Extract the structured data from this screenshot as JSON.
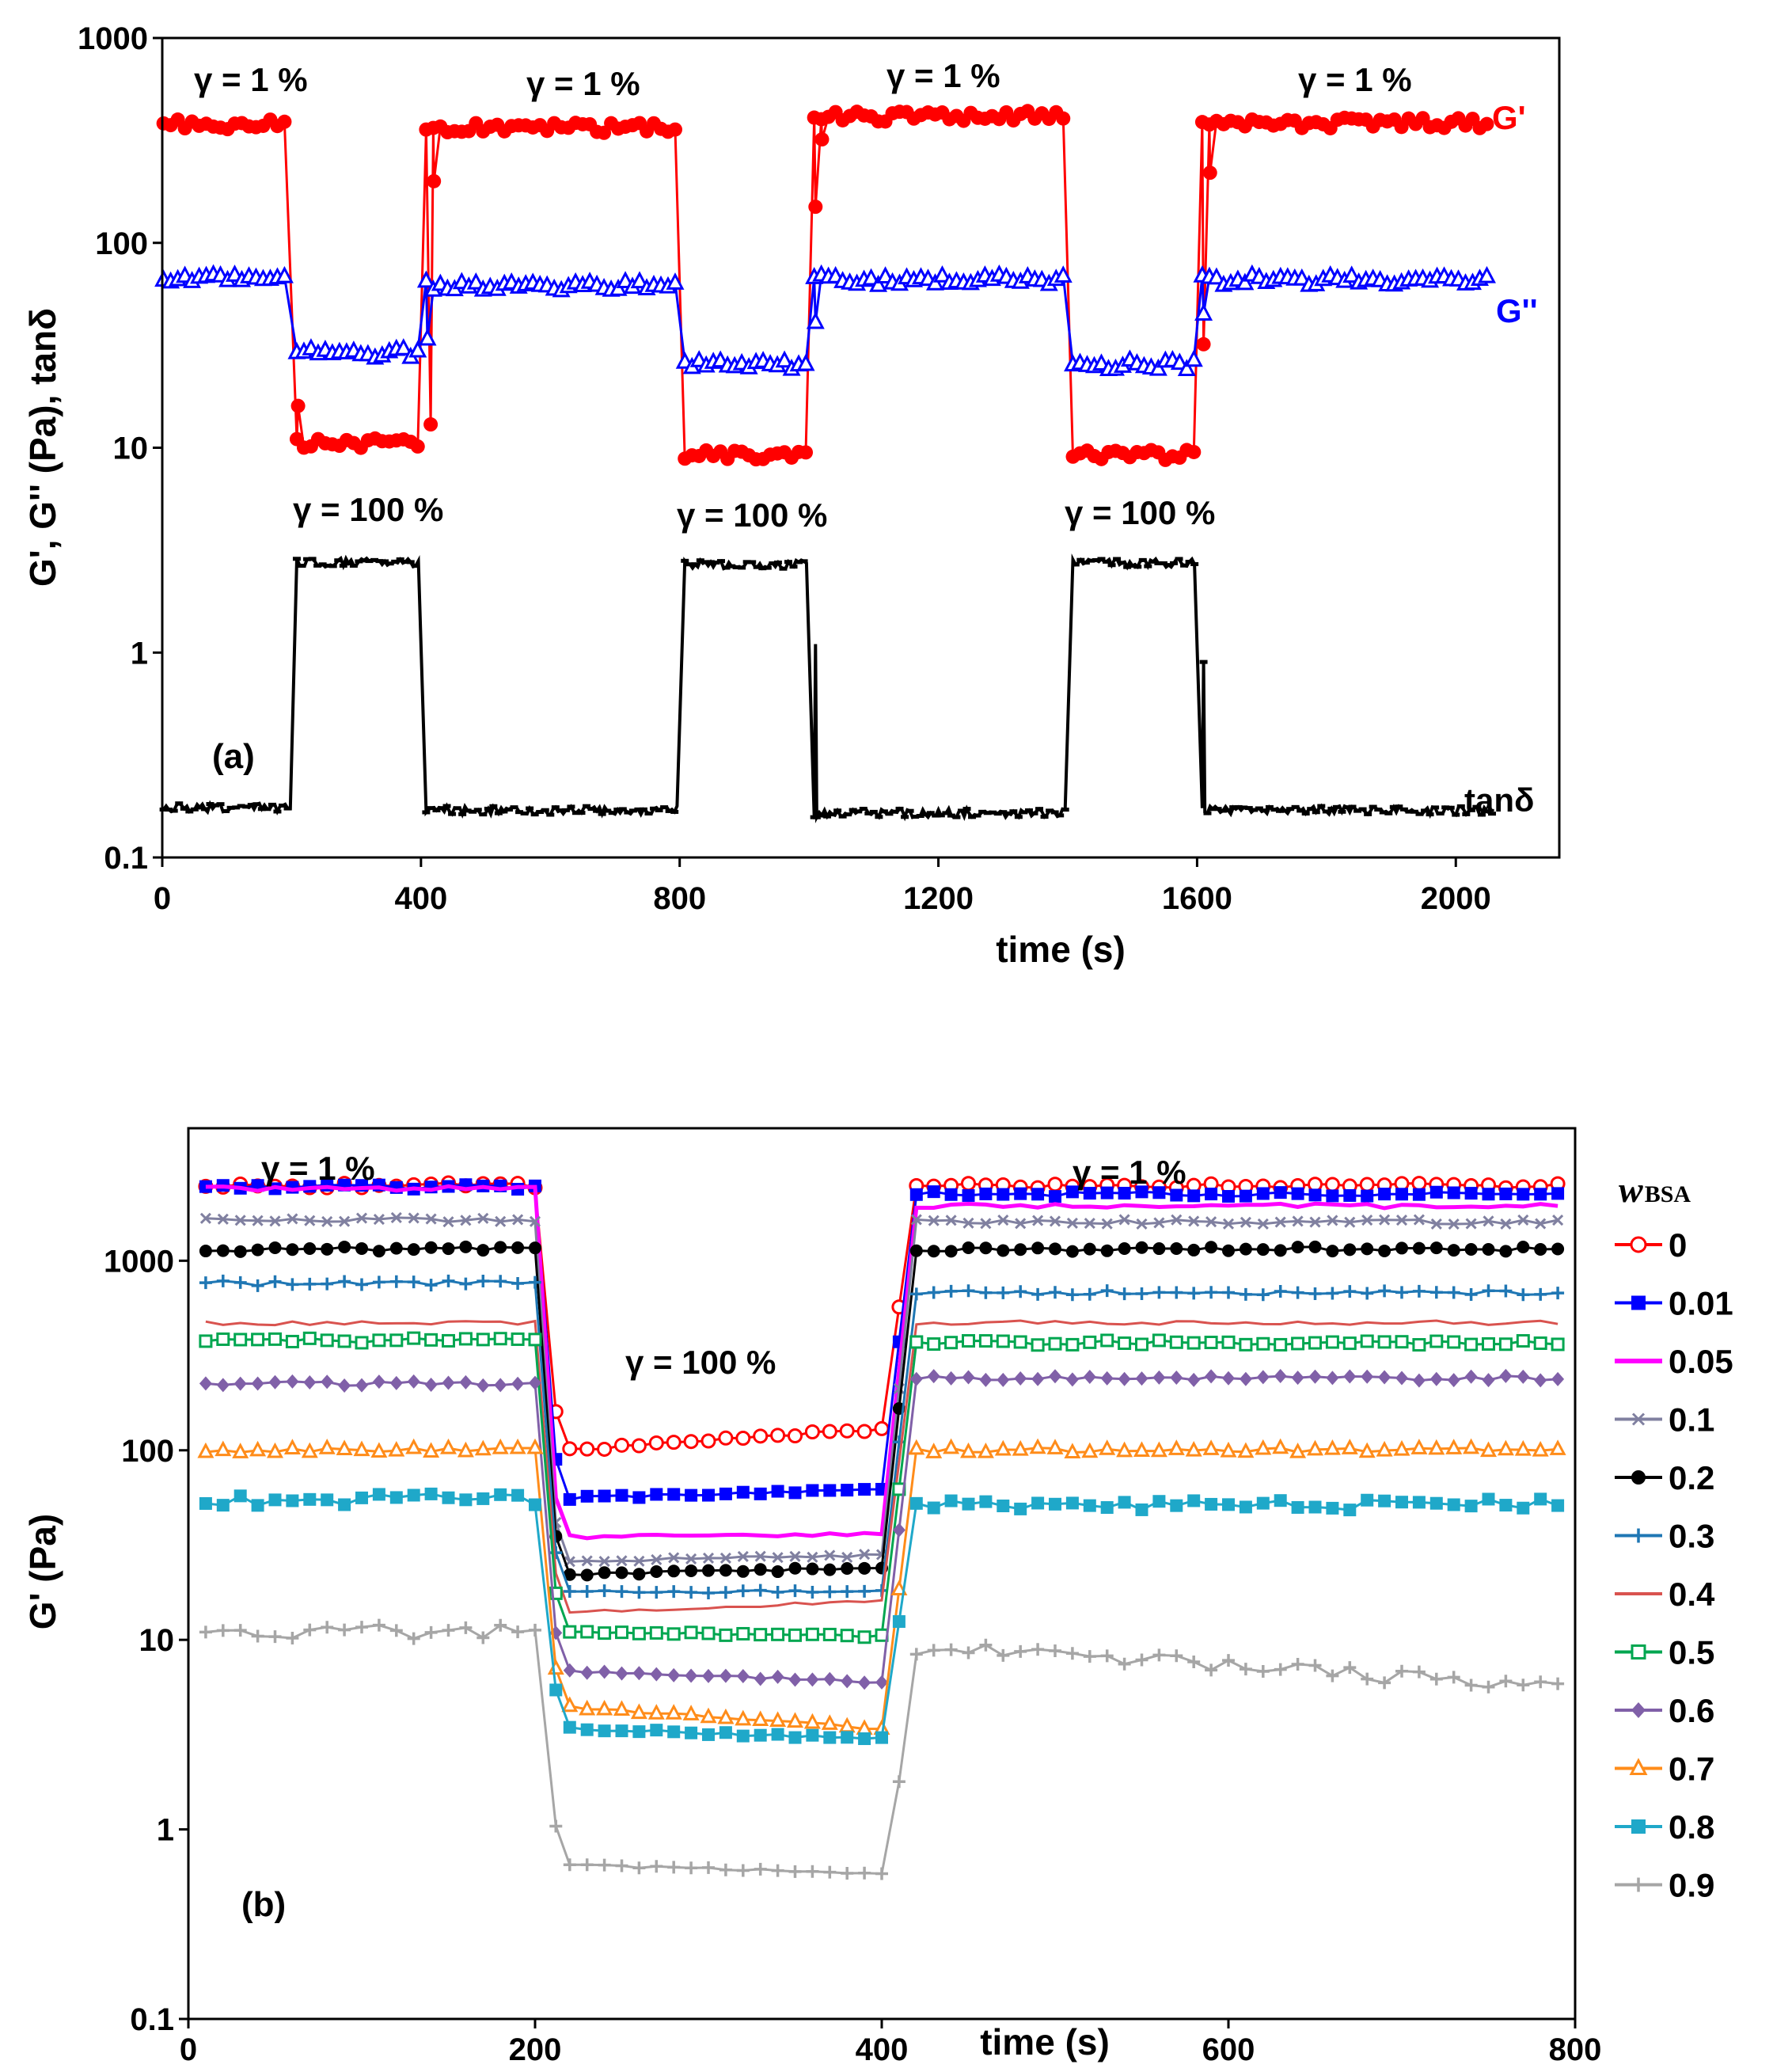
{
  "chart_data": [
    {
      "panel": "(a)",
      "type": "line",
      "yscale": "log",
      "xlim": [
        0,
        2160
      ],
      "ylim": [
        0.1,
        1000
      ],
      "xticks": [
        "0",
        "400",
        "800",
        "1200",
        "1600",
        "2000"
      ],
      "yticks": [
        "0.1",
        "1",
        "10",
        "100",
        "1000"
      ],
      "xlabel": "time (s)",
      "ylabel": "G', G'' (Pa), tanδ",
      "annotations": [
        "γ  = 1 %",
        "γ  = 1 %",
        "γ  = 1 %",
        "γ  = 1 %",
        "γ  = 100 %",
        "γ  = 100 %",
        "γ  = 100 %"
      ],
      "steps": [
        {
          "start": 0,
          "end": 200,
          "strain": "1 %"
        },
        {
          "start": 200,
          "end": 400,
          "strain": "100 %"
        },
        {
          "start": 400,
          "end": 800,
          "strain": "1 %"
        },
        {
          "start": 800,
          "end": 1000,
          "strain": "100 %"
        },
        {
          "start": 1000,
          "end": 1400,
          "strain": "1 %"
        },
        {
          "start": 1400,
          "end": 1600,
          "strain": "100 %"
        },
        {
          "start": 1600,
          "end": 2060,
          "strain": "1 %"
        }
      ],
      "series": [
        {
          "name": "G'",
          "color": "#ff0000",
          "marker": "filled-circle",
          "levels": [
            380,
            10.5,
            365,
            9.3,
            415,
            9.2,
            385
          ],
          "transition_points": [
            [
              210,
              16
            ],
            [
              415,
              13
            ],
            [
              420,
              200
            ],
            [
              1010,
              150
            ],
            [
              1020,
              320
            ],
            [
              1610,
              32
            ],
            [
              1620,
              220
            ]
          ]
        },
        {
          "name": "G''",
          "color": "#0000ff",
          "marker": "open-triangle",
          "levels": [
            67,
            29,
            62,
            25.5,
            66,
            25.5,
            66
          ],
          "transition_points": [
            [
              410,
              34
            ],
            [
              1010,
              41
            ],
            [
              1610,
              45
            ]
          ]
        },
        {
          "name": "tanδ",
          "color": "#000000",
          "marker": "dash",
          "levels": [
            0.175,
            2.75,
            0.17,
            2.7,
            0.165,
            2.75,
            0.17
          ],
          "transition_points": [
            [
              1010,
              1.1
            ],
            [
              1610,
              0.9
            ]
          ]
        }
      ]
    },
    {
      "panel": "(b)",
      "type": "line",
      "yscale": "log",
      "xlim": [
        0,
        800
      ],
      "ylim": [
        0.1,
        5000
      ],
      "xticks": [
        "0",
        "200",
        "400",
        "600",
        "800"
      ],
      "yticks": [
        "0.1",
        "1",
        "10",
        "100",
        "1000"
      ],
      "xlabel": "time (s)",
      "ylabel": "G' (Pa)",
      "annotations": [
        "γ = 1 %",
        "γ = 100 %",
        "γ = 1 %"
      ],
      "legend_title": "w",
      "legend_subscript": "BSA",
      "series": [
        {
          "name": "0",
          "color": "#ff0000",
          "marker": "open-circle",
          "levels": [
            2500,
            100,
            130,
            2500
          ]
        },
        {
          "name": "0.01",
          "color": "#0000ff",
          "marker": "filled-square",
          "levels": [
            2450,
            56,
            62,
            2250
          ]
        },
        {
          "name": "0.05",
          "color": "#ff00ff",
          "marker": "dash",
          "levels": [
            2400,
            35,
            36,
            1950
          ]
        },
        {
          "name": "0.1",
          "color": "#8080a0",
          "marker": "x",
          "levels": [
            1650,
            26,
            28,
            1600
          ]
        },
        {
          "name": "0.2",
          "color": "#000000",
          "marker": "filled-circle",
          "levels": [
            1150,
            22,
            24,
            1150
          ]
        },
        {
          "name": "0.3",
          "color": "#1f77b4",
          "marker": "plus",
          "levels": [
            760,
            18,
            18,
            680
          ]
        },
        {
          "name": "0.4",
          "color": "#d9534f",
          "marker": "none",
          "levels": [
            470,
            14,
            16,
            470
          ]
        },
        {
          "name": "0.5",
          "color": "#00a650",
          "marker": "open-square",
          "levels": [
            380,
            11,
            10.5,
            370
          ]
        },
        {
          "name": "0.6",
          "color": "#8060a8",
          "marker": "filled-diamond",
          "levels": [
            225,
            6.8,
            6.0,
            240
          ]
        },
        {
          "name": "0.7",
          "color": "#ff8c1a",
          "marker": "open-triangle",
          "levels": [
            100,
            4.4,
            3.4,
            100
          ]
        },
        {
          "name": "0.8",
          "color": "#1fa8c9",
          "marker": "filled-square",
          "levels": [
            55,
            3.4,
            3.0,
            52
          ]
        },
        {
          "name": "0.9",
          "color": "#a6a6a6",
          "marker": "plus",
          "levels": [
            11,
            0.65,
            0.58,
            5.5
          ]
        }
      ]
    }
  ]
}
